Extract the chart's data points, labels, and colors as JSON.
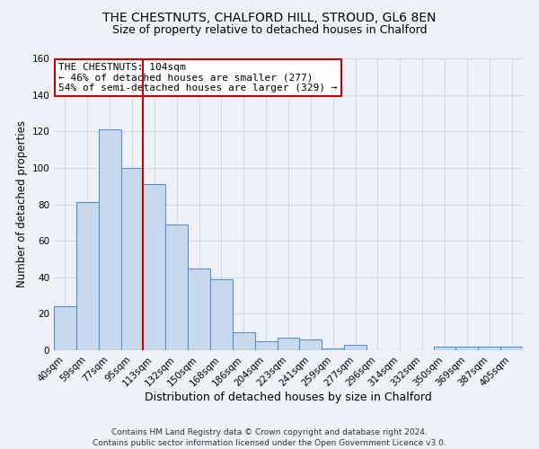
{
  "title": "THE CHESTNUTS, CHALFORD HILL, STROUD, GL6 8EN",
  "subtitle": "Size of property relative to detached houses in Chalford",
  "xlabel": "Distribution of detached houses by size in Chalford",
  "ylabel": "Number of detached properties",
  "bar_labels": [
    "40sqm",
    "59sqm",
    "77sqm",
    "95sqm",
    "113sqm",
    "132sqm",
    "150sqm",
    "168sqm",
    "186sqm",
    "204sqm",
    "223sqm",
    "241sqm",
    "259sqm",
    "277sqm",
    "296sqm",
    "314sqm",
    "332sqm",
    "350sqm",
    "369sqm",
    "387sqm",
    "405sqm"
  ],
  "bar_values": [
    24,
    81,
    121,
    100,
    91,
    69,
    45,
    39,
    10,
    5,
    7,
    6,
    1,
    3,
    0,
    0,
    0,
    2,
    2,
    2,
    2
  ],
  "bar_color": "#c9d9ed",
  "bar_edge_color": "#5a8fc2",
  "bar_edge_width": 0.8,
  "vline_x": 3.5,
  "vline_color": "#cc0000",
  "vline_linewidth": 1.5,
  "annotation_title": "THE CHESTNUTS: 104sqm",
  "annotation_line1": "← 46% of detached houses are smaller (277)",
  "annotation_line2": "54% of semi-detached houses are larger (329) →",
  "annotation_box_color": "#ffffff",
  "annotation_box_edge": "#cc0000",
  "ylim": [
    0,
    160
  ],
  "yticks": [
    0,
    20,
    40,
    60,
    80,
    100,
    120,
    140,
    160
  ],
  "grid_color": "#d0d8e8",
  "background_color": "#eef2f8",
  "footer_line1": "Contains HM Land Registry data © Crown copyright and database right 2024.",
  "footer_line2": "Contains public sector information licensed under the Open Government Licence v3.0.",
  "title_fontsize": 10,
  "subtitle_fontsize": 9,
  "xlabel_fontsize": 9,
  "ylabel_fontsize": 8.5,
  "tick_fontsize": 7.5,
  "annotation_fontsize": 8,
  "footer_fontsize": 6.5
}
